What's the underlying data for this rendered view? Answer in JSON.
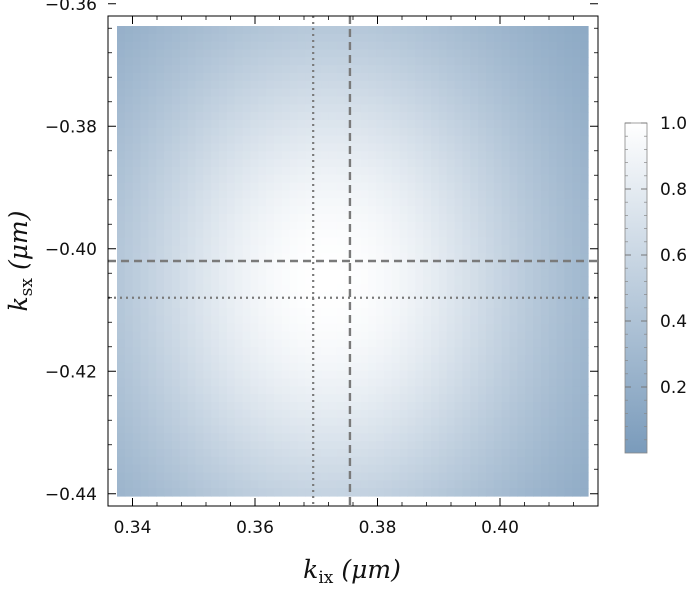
{
  "chart_data": {
    "type": "heatmap",
    "title": "",
    "xlabel": {
      "symbol": "k",
      "subscript": "ix",
      "unit": "(μm)"
    },
    "ylabel": {
      "symbol": "k",
      "subscript": "sx",
      "unit": "(μm)"
    },
    "xlim": [
      0.336,
      0.416
    ],
    "ylim": [
      -0.442,
      -0.362
    ],
    "x_ticks": [
      {
        "value": 0.34,
        "label": "0.34"
      },
      {
        "value": 0.36,
        "label": "0.36"
      },
      {
        "value": 0.38,
        "label": "0.38"
      },
      {
        "value": 0.4,
        "label": "0.40"
      }
    ],
    "y_ticks": [
      {
        "value": -0.36,
        "label": "−0.36"
      },
      {
        "value": -0.38,
        "label": "−0.38"
      },
      {
        "value": -0.4,
        "label": "−0.40"
      },
      {
        "value": -0.42,
        "label": "−0.42"
      },
      {
        "value": -0.44,
        "label": "−0.44"
      }
    ],
    "field": {
      "shape": "gaussian",
      "peak_value": 1.0,
      "peak_x": 0.372,
      "peak_y": -0.405,
      "sigma_x": 0.026,
      "sigma_y": 0.032,
      "min_value": 0.03
    },
    "reference_lines": [
      {
        "orientation": "vertical",
        "value": 0.3755,
        "style": "dashed"
      },
      {
        "orientation": "vertical",
        "value": 0.3695,
        "style": "dotted"
      },
      {
        "orientation": "horizontal",
        "value": -0.402,
        "style": "dashed"
      },
      {
        "orientation": "horizontal",
        "value": -0.408,
        "style": "dotted"
      }
    ],
    "colorbar": {
      "range": [
        0,
        1
      ],
      "ticks": [
        {
          "value": 0.2,
          "label": "0.2"
        },
        {
          "value": 0.4,
          "label": "0.4"
        },
        {
          "value": 0.6,
          "label": "0.6"
        },
        {
          "value": 0.8,
          "label": "0.8"
        },
        {
          "value": 1.0,
          "label": "1.0"
        }
      ],
      "color_low": "#7a9bbb",
      "color_high": "#ffffff"
    },
    "colors": {
      "line": "#7a7a7a",
      "frame": "#000000"
    }
  }
}
